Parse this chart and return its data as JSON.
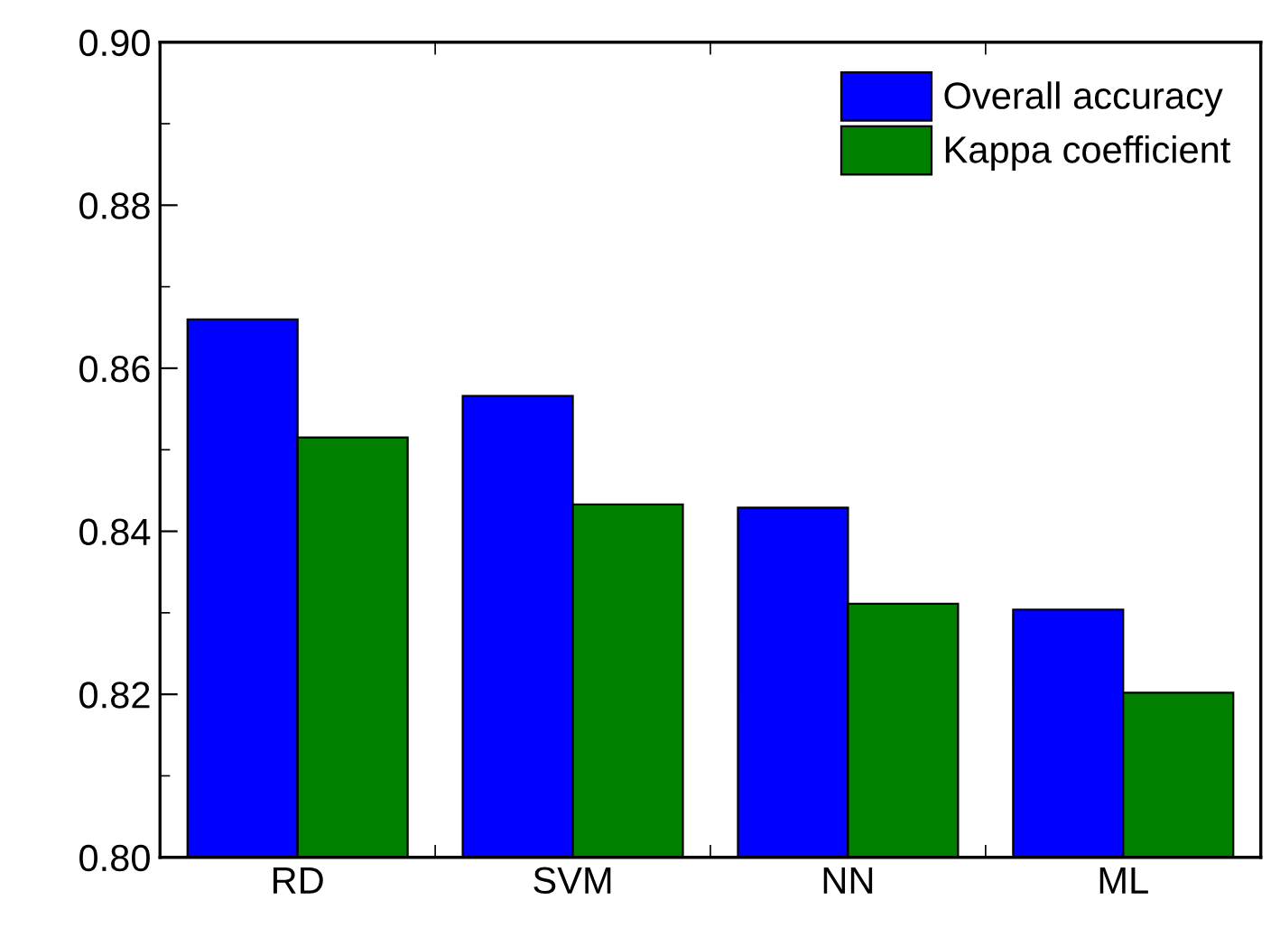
{
  "chart_data": {
    "type": "bar",
    "categories": [
      "RD",
      "SVM",
      "NN",
      "ML"
    ],
    "series": [
      {
        "name": "Overall accuracy",
        "color": "#0000ff",
        "values": [
          0.866,
          0.8566,
          0.8429,
          0.8304
        ]
      },
      {
        "name": "Kappa coefficient",
        "color": "#007f00",
        "values": [
          0.8515,
          0.8433,
          0.8311,
          0.8202
        ]
      }
    ],
    "ylim": [
      0.8,
      0.9
    ],
    "yticks": [
      {
        "value": 0.8,
        "label": "0.80"
      },
      {
        "value": 0.82,
        "label": "0.82"
      },
      {
        "value": 0.84,
        "label": "0.84"
      },
      {
        "value": 0.86,
        "label": "0.86"
      },
      {
        "value": 0.88,
        "label": "0.88"
      },
      {
        "value": 0.9,
        "label": "0.90"
      }
    ],
    "grid": false,
    "legend": "top right"
  }
}
